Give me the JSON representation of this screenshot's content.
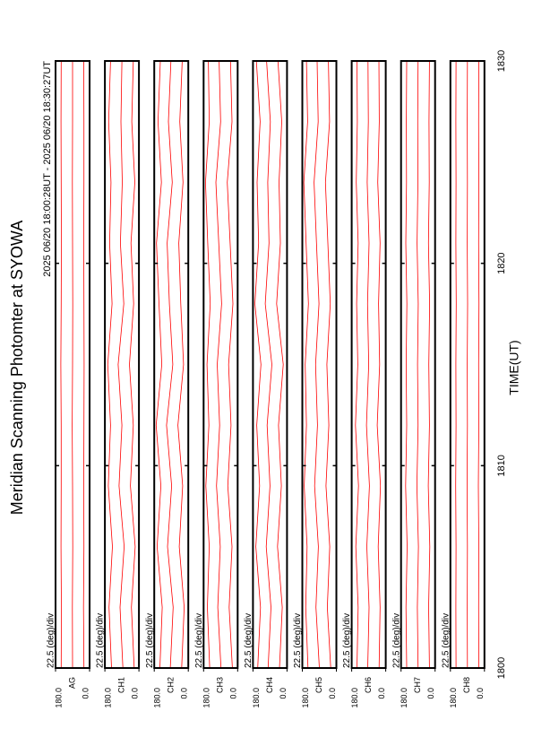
{
  "chart_data": {
    "type": "line",
    "title": "Meridian Scanning Photomter at SYOWA",
    "subtitle": "2025 06/20 18:00:28UT - 2025 06/20 18:30:27UT",
    "xlabel": "TIME(UT)",
    "color": "#ff0000",
    "x": [
      1800,
      1803,
      1806,
      1809,
      1812,
      1815,
      1818,
      1821,
      1824,
      1827,
      1830
    ],
    "xlim": [
      1800,
      1830
    ],
    "xticks": [
      1800,
      1810,
      1820,
      1830
    ],
    "panels": [
      {
        "name": "AG",
        "scale_label": "22.5 (deg)/div",
        "ylim": [
          0,
          180
        ],
        "yticks": [
          {
            "value": 180,
            "label": "180.0"
          },
          {
            "value": 0,
            "label": "0.0"
          }
        ],
        "series": [
          {
            "values": [
              30,
              32,
              30,
              31,
              30,
              29,
              30,
              31,
              30,
              30,
              31
            ]
          },
          {
            "values": [
              90,
              91,
              89,
              90,
              92,
              90,
              89,
              90,
              91,
              90,
              90
            ]
          },
          {
            "values": [
              150,
              149,
              151,
              150,
              150,
              152,
              150,
              149,
              150,
              151,
              150
            ]
          }
        ]
      },
      {
        "name": "CH1",
        "scale_label": "22.5 (deg)/div",
        "ylim": [
          0,
          180
        ],
        "yticks": [
          {
            "value": 180,
            "label": "180.0"
          },
          {
            "value": 0,
            "label": "0.0"
          }
        ],
        "series": [
          {
            "values": [
              25,
              40,
              20,
              45,
              30,
              50,
              28,
              42,
              22,
              38,
              30
            ]
          },
          {
            "values": [
              85,
              100,
              78,
              105,
              90,
              110,
              80,
              98,
              88,
              95,
              90
            ]
          },
          {
            "values": [
              145,
              158,
              140,
              162,
              150,
              165,
              142,
              155,
              148,
              160,
              150
            ]
          }
        ]
      },
      {
        "name": "CH2",
        "scale_label": "22.5 (deg)/div",
        "ylim": [
          0,
          180
        ],
        "yticks": [
          {
            "value": 180,
            "label": "180.0"
          },
          {
            "value": 0,
            "label": "0.0"
          }
        ],
        "series": [
          {
            "values": [
              35,
              22,
              48,
              30,
              55,
              25,
              40,
              50,
              28,
              45,
              32
            ]
          },
          {
            "values": [
              95,
              80,
              110,
              88,
              115,
              82,
              100,
              112,
              85,
              105,
              92
            ]
          },
          {
            "values": [
              150,
              138,
              165,
              145,
              170,
              140,
              155,
              168,
              142,
              160,
              148
            ]
          }
        ]
      },
      {
        "name": "CH3",
        "scale_label": "22.5 (deg)/div",
        "ylim": [
          0,
          180
        ],
        "yticks": [
          {
            "value": 180,
            "label": "180.0"
          },
          {
            "value": 0,
            "label": "0.0"
          }
        ],
        "series": [
          {
            "values": [
              28,
              45,
              30,
              52,
              35,
              48,
              25,
              40,
              55,
              30,
              38
            ]
          },
          {
            "values": [
              88,
              105,
              92,
              112,
              95,
              108,
              85,
              100,
              115,
              90,
              98
            ]
          },
          {
            "values": [
              148,
              160,
              150,
              168,
              152,
              162,
              145,
              158,
              170,
              150,
              155
            ]
          }
        ]
      },
      {
        "name": "CH4",
        "scale_label": "22.5 (deg)/div",
        "ylim": [
          0,
          180
        ],
        "yticks": [
          {
            "value": 180,
            "label": "180.0"
          },
          {
            "value": 0,
            "label": "0.0"
          }
        ],
        "series": [
          {
            "values": [
              40,
              25,
              50,
              30,
              45,
              20,
              55,
              35,
              42,
              28,
              48
            ]
          },
          {
            "values": [
              100,
              85,
              110,
              90,
              105,
              80,
              115,
              95,
              102,
              88,
              108
            ]
          },
          {
            "values": [
              155,
              140,
              165,
              145,
              160,
              138,
              170,
              150,
              158,
              142,
              162
            ]
          }
        ]
      },
      {
        "name": "CH5",
        "scale_label": "22.5 (deg)/div",
        "ylim": [
          0,
          180
        ],
        "yticks": [
          {
            "value": 180,
            "label": "180.0"
          },
          {
            "value": 0,
            "label": "0.0"
          }
        ],
        "series": [
          {
            "values": [
              30,
              48,
              35,
              55,
              40,
              50,
              32,
              45,
              58,
              36,
              42
            ]
          },
          {
            "values": [
              90,
              108,
              95,
              115,
              100,
              110,
              92,
              105,
              118,
              96,
              102
            ]
          },
          {
            "values": [
              150,
              162,
              155,
              170,
              158,
              165,
              148,
              160,
              172,
              152,
              158
            ]
          }
        ]
      },
      {
        "name": "CH6",
        "scale_label": "22.5 (deg)/div",
        "ylim": [
          0,
          180
        ],
        "yticks": [
          {
            "value": 180,
            "label": "180.0"
          },
          {
            "value": 0,
            "label": "0.0"
          }
        ],
        "series": [
          {
            "values": [
              35,
              30,
              40,
              28,
              45,
              32,
              38,
              30,
              42,
              34,
              36
            ]
          },
          {
            "values": [
              95,
              88,
              100,
              86,
              102,
              90,
              96,
              88,
              98,
              92,
              94
            ]
          },
          {
            "values": [
              152,
              146,
              158,
              144,
              160,
              148,
              154,
              146,
              156,
              150,
              152
            ]
          }
        ]
      },
      {
        "name": "CH7",
        "scale_label": "22.5 (deg)/div",
        "ylim": [
          0,
          180
        ],
        "yticks": [
          {
            "value": 180,
            "label": "180.0"
          },
          {
            "value": 0,
            "label": "0.0"
          }
        ],
        "series": [
          {
            "values": [
              30,
              34,
              28,
              36,
              30,
              33,
              29,
              35,
              31,
              32,
              30
            ]
          },
          {
            "values": [
              90,
              94,
              88,
              96,
              90,
              93,
              89,
              95,
              91,
              92,
              90
            ]
          },
          {
            "values": [
              150,
              154,
              148,
              156,
              150,
              153,
              149,
              155,
              151,
              152,
              150
            ]
          }
        ]
      },
      {
        "name": "CH8",
        "scale_label": "22.5 (deg)/div",
        "ylim": [
          0,
          180
        ],
        "yticks": [
          {
            "value": 180,
            "label": "180.0"
          },
          {
            "value": 0,
            "label": "0.0"
          }
        ],
        "series": [
          {
            "values": [
              30,
              31,
              30,
              32,
              30,
              31,
              29,
              31,
              30,
              31,
              30
            ]
          },
          {
            "values": [
              90,
              91,
              90,
              92,
              90,
              91,
              89,
              91,
              90,
              91,
              90
            ]
          },
          {
            "values": [
              150,
              151,
              150,
              152,
              150,
              151,
              149,
              151,
              150,
              151,
              150
            ]
          }
        ]
      }
    ]
  }
}
